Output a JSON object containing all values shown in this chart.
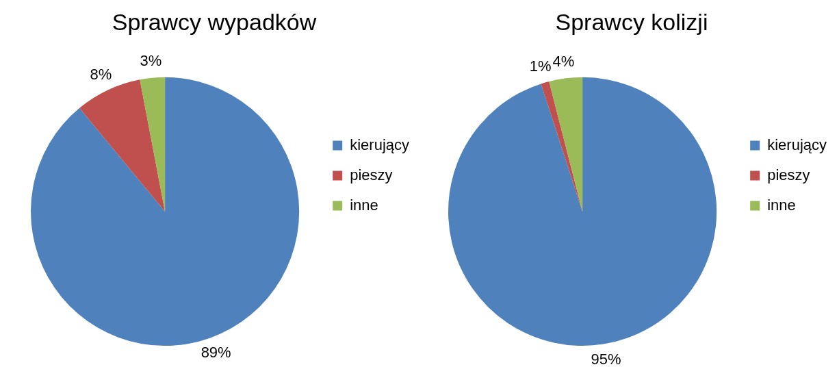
{
  "chart_data": [
    {
      "type": "pie",
      "title": "Sprawcy wypadków",
      "categories": [
        "kierujący",
        "pieszy",
        "inne"
      ],
      "values": [
        89,
        8,
        3
      ],
      "value_labels": [
        "89%",
        "8%",
        "3%"
      ],
      "colors": [
        "#4f81bd",
        "#c0504d",
        "#9bbb59"
      ],
      "legend": "right"
    },
    {
      "type": "pie",
      "title": "Sprawcy kolizji",
      "categories": [
        "kierujący",
        "pieszy",
        "inne"
      ],
      "values": [
        95,
        1,
        4
      ],
      "value_labels": [
        "95%",
        "1%",
        "4%"
      ],
      "colors": [
        "#4f81bd",
        "#c0504d",
        "#9bbb59"
      ],
      "legend": "right"
    }
  ]
}
